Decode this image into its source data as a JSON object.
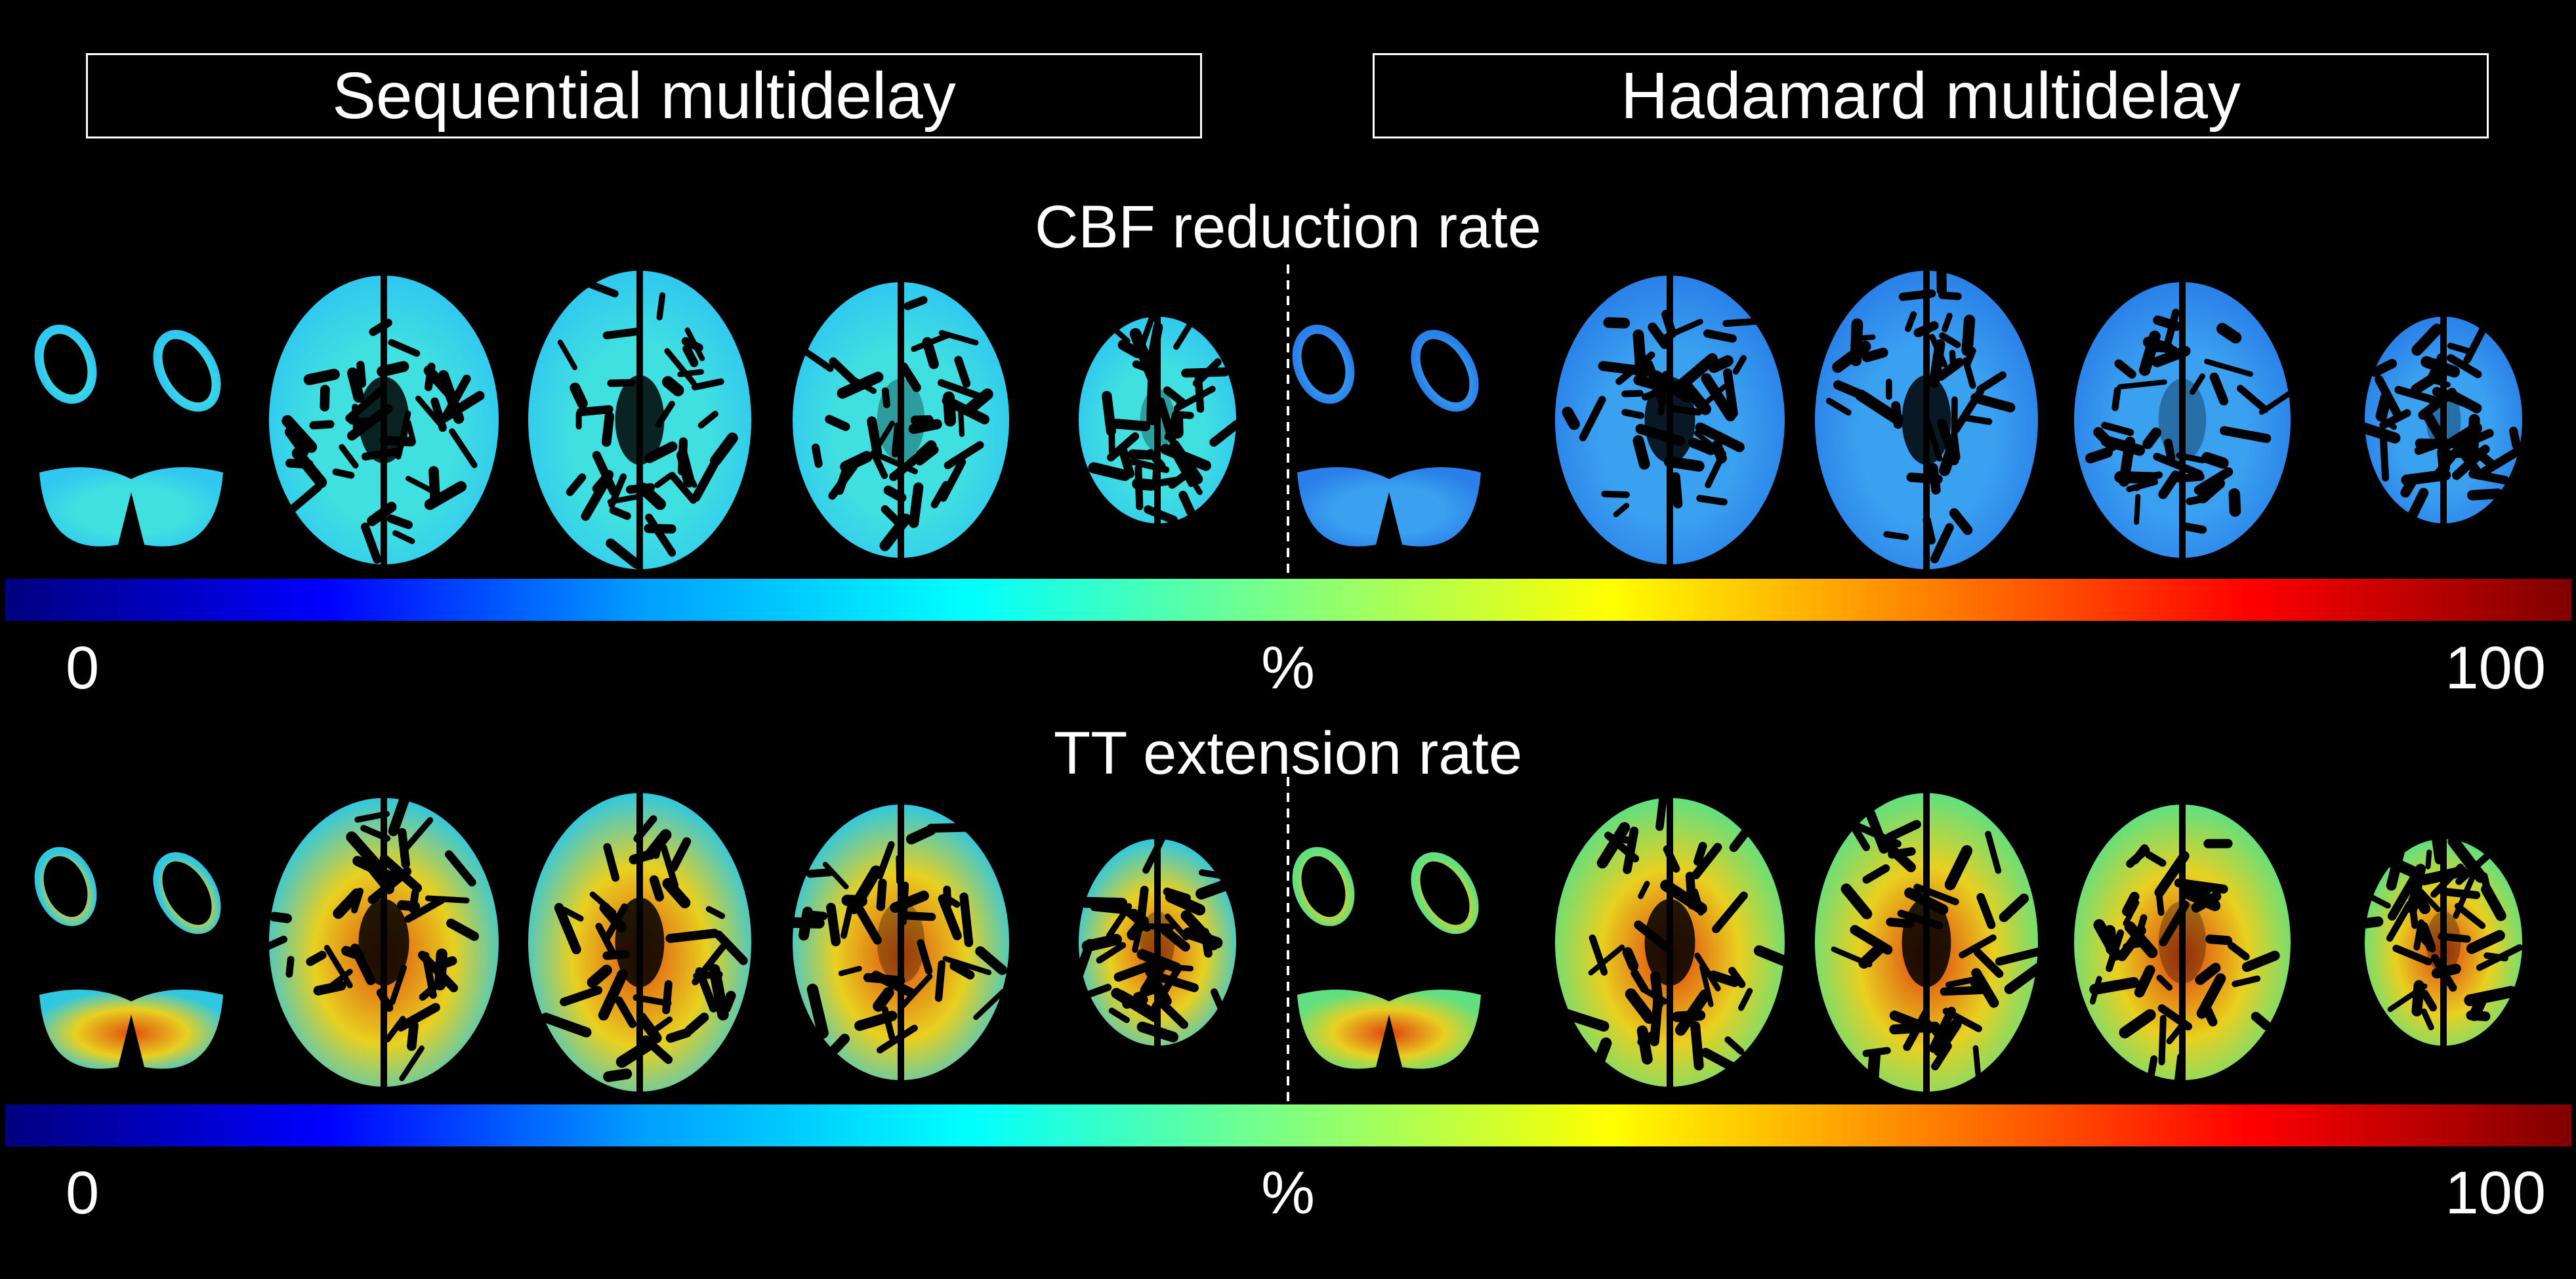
{
  "headers": {
    "left": "Sequential multidelay",
    "right": "Hadamard multidelay"
  },
  "panels": [
    {
      "title": "CBF reduction rate",
      "colorbar": {
        "min_label": "0",
        "unit_label": "%",
        "max_label": "100",
        "colormap": "jet"
      }
    },
    {
      "title": "TT extension rate",
      "colorbar": {
        "min_label": "0",
        "unit_label": "%",
        "max_label": "100",
        "colormap": "jet"
      }
    }
  ],
  "colormap_stops": [
    "#00007f",
    "#0000ff",
    "#00a0ff",
    "#00ffff",
    "#80ff80",
    "#ffff00",
    "#ff8000",
    "#ff0000",
    "#7f0000"
  ],
  "slices_per_method": 5
}
